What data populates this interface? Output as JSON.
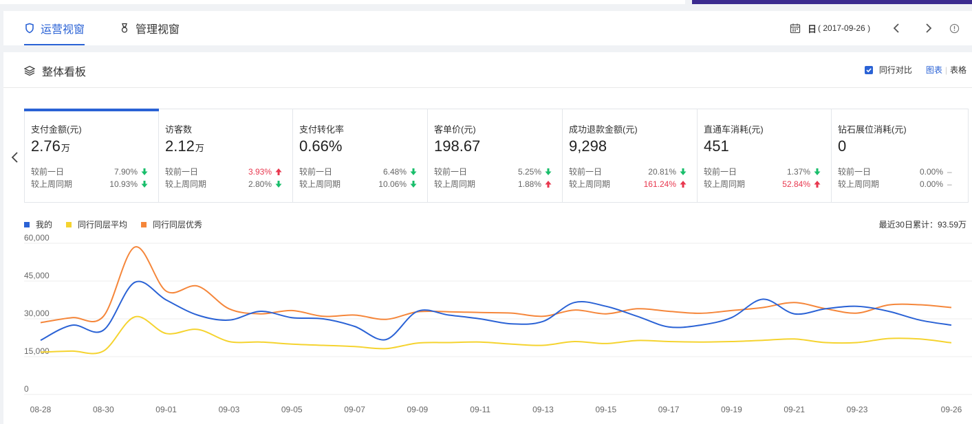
{
  "nav": {
    "tabs": [
      {
        "label": "运营视窗",
        "active": true
      },
      {
        "label": "管理视窗",
        "active": false
      }
    ],
    "date_prefix": "日",
    "date_value": "( 2017-09-26 )"
  },
  "panel": {
    "title": "整体看板",
    "compare_label": "同行对比",
    "compare_checked": true,
    "view_chart": "图表",
    "view_table": "表格"
  },
  "cards": [
    {
      "title": "支付金额(元)",
      "value": "2.76",
      "unit": "万",
      "day_label": "较前一日",
      "day_value": "7.90%",
      "day_dir": "down",
      "week_label": "较上周同期",
      "week_value": "10.93%",
      "week_dir": "down"
    },
    {
      "title": "访客数",
      "value": "2.12",
      "unit": "万",
      "day_label": "较前一日",
      "day_value": "3.93%",
      "day_dir": "up",
      "week_label": "较上周同期",
      "week_value": "2.80%",
      "week_dir": "down"
    },
    {
      "title": "支付转化率",
      "value": "0.66%",
      "unit": "",
      "day_label": "较前一日",
      "day_value": "6.48%",
      "day_dir": "down",
      "week_label": "较上周同期",
      "week_value": "10.06%",
      "week_dir": "down"
    },
    {
      "title": "客单价(元)",
      "value": "198.67",
      "unit": "",
      "day_label": "较前一日",
      "day_value": "5.25%",
      "day_dir": "down",
      "week_label": "较上周同期",
      "week_value": "1.88%",
      "week_dir": "up-muted"
    },
    {
      "title": "成功退款金额(元)",
      "value": "9,298",
      "unit": "",
      "day_label": "较前一日",
      "day_value": "20.81%",
      "day_dir": "down",
      "week_label": "较上周同期",
      "week_value": "161.24%",
      "week_dir": "up"
    },
    {
      "title": "直通车消耗(元)",
      "value": "451",
      "unit": "",
      "day_label": "较前一日",
      "day_value": "1.37%",
      "day_dir": "down",
      "week_label": "较上周同期",
      "week_value": "52.84%",
      "week_dir": "up"
    },
    {
      "title": "钻石展位消耗(元)",
      "value": "0",
      "unit": "",
      "day_label": "较前一日",
      "day_value": "0.00%",
      "day_dir": "flat",
      "week_label": "较上周同期",
      "week_value": "0.00%",
      "week_dir": "flat"
    }
  ],
  "colors": {
    "accent": "#2a62d5",
    "up": "#e8374e",
    "down": "#19be6b",
    "mine": "#2a62d5",
    "avg": "#f5d32f",
    "top": "#f5863a"
  },
  "legend": [
    "我的",
    "同行同层平均",
    "同行同层优秀"
  ],
  "total_label": "最近30日累计：93.59万",
  "chart_data": {
    "type": "line",
    "x": [
      "08-28",
      "08-29",
      "08-30",
      "08-31",
      "09-01",
      "09-02",
      "09-03",
      "09-04",
      "09-05",
      "09-06",
      "09-07",
      "09-08",
      "09-09",
      "09-10",
      "09-11",
      "09-12",
      "09-13",
      "09-14",
      "09-15",
      "09-16",
      "09-17",
      "09-18",
      "09-19",
      "09-20",
      "09-21",
      "09-22",
      "09-23",
      "09-24",
      "09-25",
      "09-26"
    ],
    "x_tick_labels": [
      "08-28",
      "08-30",
      "09-01",
      "09-03",
      "09-05",
      "09-07",
      "09-09",
      "09-11",
      "09-13",
      "09-15",
      "09-17",
      "09-19",
      "09-21",
      "09-23",
      "09-26"
    ],
    "y_ticks": [
      "0",
      "15,000",
      "30,000",
      "45,000",
      "60,000"
    ],
    "ylim": [
      0,
      60000
    ],
    "grid": "horizontal",
    "legend_position": "top-left",
    "series": [
      {
        "name": "我的",
        "color": "#2a62d5",
        "values": [
          21500,
          27500,
          25500,
          44500,
          37500,
          31500,
          29500,
          33000,
          30500,
          30000,
          27000,
          21800,
          33000,
          31500,
          30000,
          28000,
          29000,
          36500,
          35000,
          31000,
          26800,
          27500,
          30500,
          37800,
          32000,
          34000,
          35000,
          33000,
          29500,
          27500
        ]
      },
      {
        "name": "同行同层平均",
        "color": "#f5d32f",
        "values": [
          16800,
          17200,
          17200,
          30800,
          24200,
          25800,
          21000,
          20800,
          20000,
          19500,
          19000,
          18200,
          20400,
          20600,
          20800,
          20000,
          19500,
          21000,
          20200,
          21400,
          21000,
          20800,
          21000,
          21500,
          22000,
          20600,
          20600,
          22200,
          22000,
          20500
        ]
      },
      {
        "name": "同行同层优秀",
        "color": "#f5863a",
        "values": [
          28500,
          30500,
          31000,
          58500,
          41000,
          43000,
          34000,
          32000,
          33300,
          31000,
          31500,
          29800,
          32800,
          32800,
          32500,
          32300,
          31000,
          33500,
          32000,
          34000,
          33000,
          32200,
          33300,
          34500,
          36500,
          34000,
          32300,
          35500,
          35600,
          34500
        ]
      }
    ]
  }
}
